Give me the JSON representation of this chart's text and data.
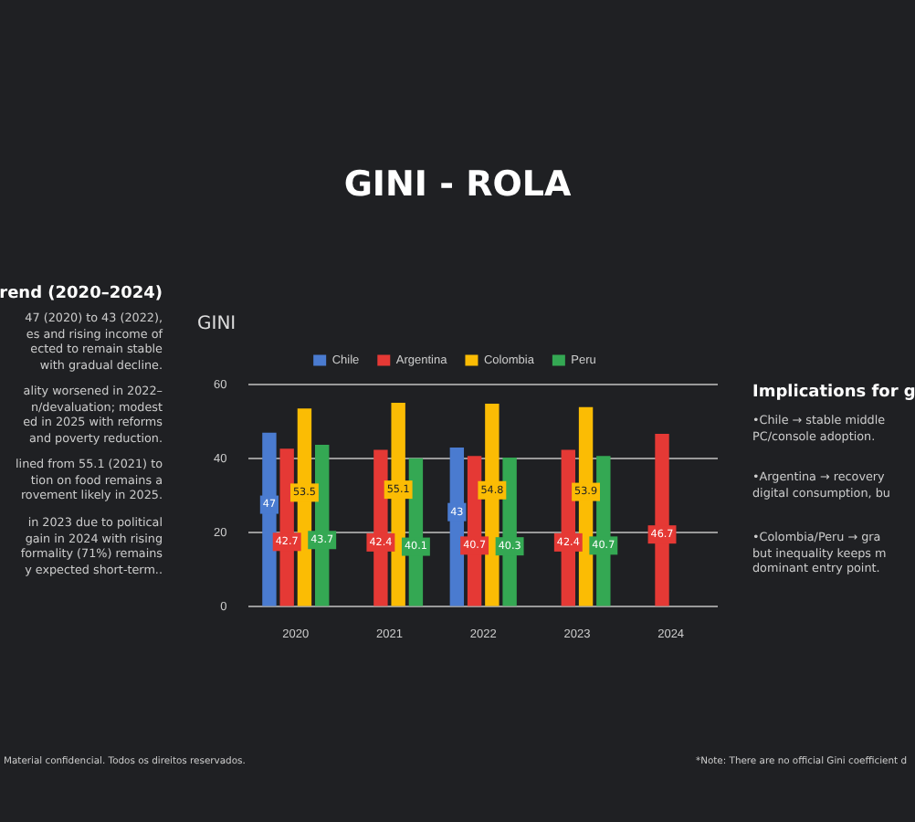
{
  "chart_data": {
    "type": "bar",
    "title": "GINI - ROLA",
    "subtitle": "GINI",
    "categories": [
      "2020",
      "2021",
      "2022",
      "2023",
      "2024"
    ],
    "series": [
      {
        "name": "Chile",
        "color": "#4a7bd0",
        "values": [
          47,
          null,
          43,
          null,
          null
        ]
      },
      {
        "name": "Argentina",
        "color": "#e53935",
        "values": [
          42.7,
          42.4,
          40.7,
          42.4,
          46.7
        ]
      },
      {
        "name": "Colombia",
        "color": "#fbbc04",
        "values": [
          53.5,
          55.1,
          54.8,
          53.9,
          null
        ]
      },
      {
        "name": "Peru",
        "color": "#34a853",
        "values": [
          43.7,
          40.1,
          40.3,
          40.7,
          null
        ]
      }
    ],
    "ylim": [
      0,
      60
    ],
    "yticks": [
      0,
      20,
      40,
      60
    ],
    "grid": "y",
    "legend": "top",
    "data_labels": true,
    "annotations": [
      "rend (2020–2024)",
      "47 (2020) to 43 (2022),\nes and rising income of\nected to remain stable\nwith gradual decline.",
      "ality worsened in 2022–\nn/devaluation; modest\ned in 2025 with reforms\nand poverty reduction.",
      "lined from 55.1 (2021) to\ntion on food remains a\nrovement likely in 2025.",
      "in 2023 due to political\ngain in 2024 with rising\nformality (71%) remains\ny expected short-term..",
      "Implications for g",
      "•Chile → stable middle\nPC/console adoption.",
      "•Argentina → recovery\ndigital consumption, bu",
      "•Colombia/Peru → gra\nbut inequality keeps m\ndominant entry point.",
      "Material confidencial. Todos os direitos reservados.",
      "*Note: There are no official Gini coefficient d"
    ]
  }
}
